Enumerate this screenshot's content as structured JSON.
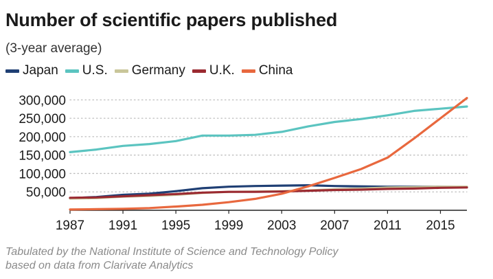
{
  "title": "Number of scientific papers published",
  "subtitle": "(3-year average)",
  "source": {
    "line1": "Tabulated by the National Institute of Science and Technology Policy",
    "line2": "based on data from Clarivate Analytics"
  },
  "chart_data": {
    "type": "line",
    "xlim": [
      1987,
      2017
    ],
    "ylim": [
      0,
      310000
    ],
    "x_ticks": [
      1987,
      1991,
      1995,
      1999,
      2003,
      2007,
      2011,
      2015
    ],
    "x_tick_labels": [
      "1987",
      "1991",
      "1995",
      "1999",
      "2003",
      "2007",
      "2011",
      "2015"
    ],
    "y_ticks": [
      50000,
      100000,
      150000,
      200000,
      250000,
      300000
    ],
    "y_tick_labels": [
      "50,000",
      "100,000",
      "150,000",
      "200,000",
      "250,000",
      "300,000"
    ],
    "grid": "horizontal dotted",
    "legend_position": "top",
    "series": [
      {
        "name": "Japan",
        "color": "#1f3f74",
        "x": [
          1987,
          1989,
          1991,
          1993,
          1995,
          1997,
          1999,
          2001,
          2003,
          2005,
          2007,
          2009,
          2011,
          2013,
          2015,
          2017
        ],
        "y": [
          33000,
          36000,
          42000,
          45000,
          52000,
          60000,
          64000,
          66000,
          67000,
          68000,
          66000,
          65000,
          64000,
          64000,
          64000,
          63000
        ]
      },
      {
        "name": "U.S.",
        "color": "#5bc4c0",
        "x": [
          1987,
          1989,
          1991,
          1993,
          1995,
          1997,
          1999,
          2001,
          2003,
          2005,
          2007,
          2009,
          2011,
          2013,
          2015,
          2017
        ],
        "y": [
          158000,
          165000,
          175000,
          180000,
          188000,
          203000,
          203000,
          205000,
          213000,
          228000,
          240000,
          248000,
          258000,
          270000,
          276000,
          282000
        ]
      },
      {
        "name": "Germany",
        "color": "#c9c69a",
        "x": [
          1987,
          1989,
          1991,
          1993,
          1995,
          1997,
          1999,
          2001,
          2003,
          2005,
          2007,
          2009,
          2011,
          2013,
          2015,
          2017
        ],
        "y": [
          32000,
          33000,
          37000,
          39000,
          42000,
          47000,
          50000,
          51000,
          52000,
          54000,
          57000,
          59000,
          62000,
          63000,
          64000,
          64000
        ]
      },
      {
        "name": "U.K.",
        "color": "#9b2a31",
        "x": [
          1987,
          1989,
          1991,
          1993,
          1995,
          1997,
          1999,
          2001,
          2003,
          2005,
          2007,
          2009,
          2011,
          2013,
          2015,
          2017
        ],
        "y": [
          34000,
          35000,
          38000,
          41000,
          44000,
          48000,
          50000,
          50000,
          51000,
          53000,
          55000,
          56000,
          58000,
          59000,
          61000,
          62000
        ]
      },
      {
        "name": "China",
        "color": "#e8683e",
        "x": [
          1987,
          1989,
          1991,
          1993,
          1995,
          1997,
          1999,
          2001,
          2003,
          2005,
          2007,
          2009,
          2011,
          2013,
          2015,
          2017
        ],
        "y": [
          2000,
          3000,
          4000,
          6000,
          10000,
          15000,
          22000,
          31000,
          45000,
          65000,
          88000,
          112000,
          143000,
          195000,
          250000,
          305000
        ]
      }
    ]
  }
}
